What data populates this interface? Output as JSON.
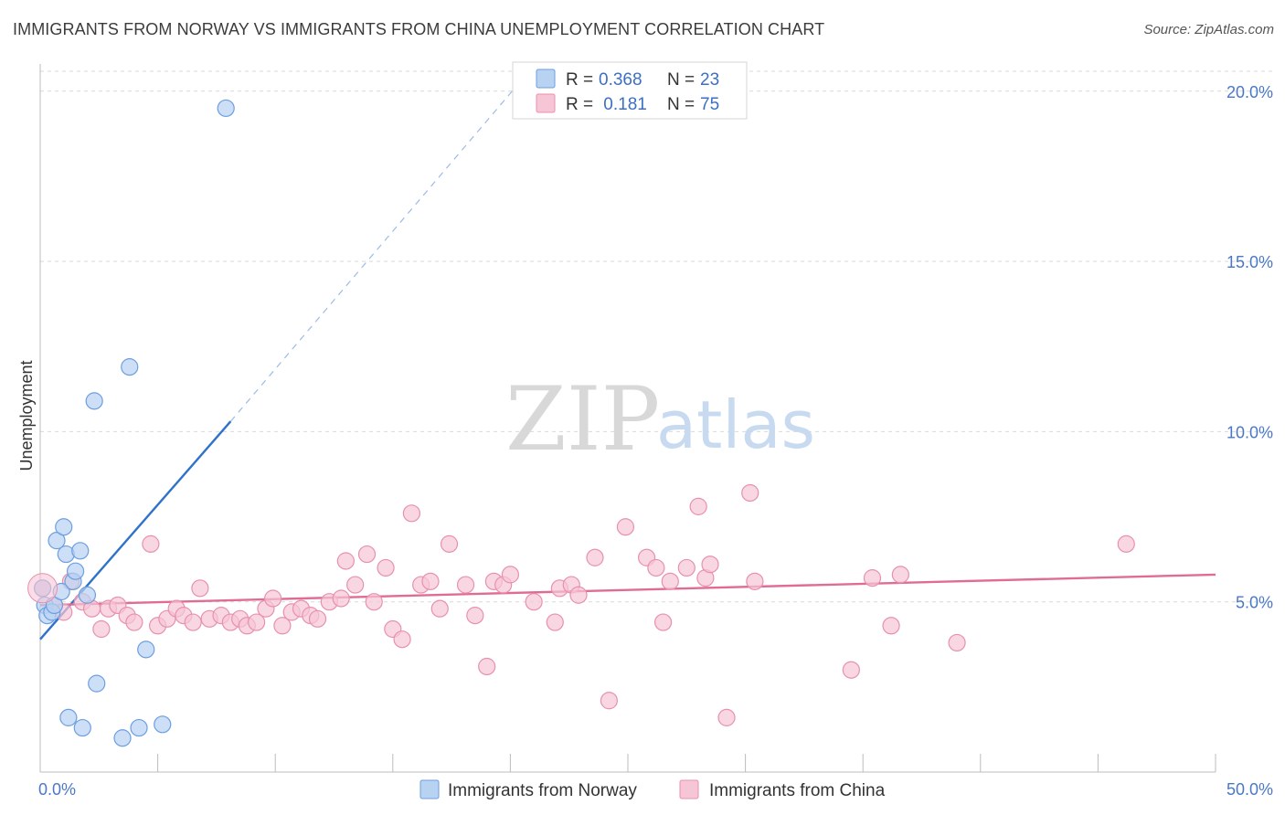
{
  "header": {
    "title": "IMMIGRANTS FROM NORWAY VS IMMIGRANTS FROM CHINA UNEMPLOYMENT CORRELATION CHART",
    "source": "Source: ZipAtlas.com"
  },
  "watermark": {
    "zip": "ZIP",
    "atlas": "atlas"
  },
  "colors": {
    "norway_fill": "#b8d2f2",
    "norway_stroke": "#6c9ee0",
    "norway_line": "#2e72cc",
    "china_fill": "#f7c6d6",
    "china_stroke": "#e890ae",
    "china_line": "#e06c96",
    "grid": "#d9d9d9",
    "tick": "#4a78c8"
  },
  "legend": {
    "norway": {
      "r_label": "R = ",
      "r_value": "0.368",
      "n_label": "N = ",
      "n_value": "23"
    },
    "china": {
      "r_label": "R = ",
      "r_value": " 0.181",
      "n_label": "N = ",
      "n_value": "75"
    }
  },
  "chart_data": {
    "type": "scatter",
    "title": "IMMIGRANTS FROM NORWAY VS IMMIGRANTS FROM CHINA UNEMPLOYMENT CORRELATION CHART",
    "xlabel": "",
    "ylabel": "Unemployment",
    "xlim": [
      0,
      50
    ],
    "ylim": [
      0,
      20.8
    ],
    "x_tick_labels": [
      "0.0%",
      "50.0%"
    ],
    "y_ticks": [
      5,
      10,
      15,
      20
    ],
    "y_tick_labels": [
      "5.0%",
      "10.0%",
      "15.0%",
      "20.0%"
    ],
    "grid": true,
    "legend_position": "top-center",
    "series": [
      {
        "name": "Immigrants from Norway",
        "r": 0.368,
        "n": 23,
        "trend": {
          "x0": 0,
          "y0": 3.9,
          "x1": 8.1,
          "y1": 10.3,
          "dashed_to_x": 20.2,
          "dashed_to_y": 20.1
        },
        "points": [
          [
            0.1,
            5.4
          ],
          [
            0.2,
            4.9
          ],
          [
            0.3,
            4.6
          ],
          [
            0.5,
            4.7
          ],
          [
            0.6,
            4.9
          ],
          [
            0.7,
            6.8
          ],
          [
            0.9,
            5.3
          ],
          [
            1.0,
            7.2
          ],
          [
            1.1,
            6.4
          ],
          [
            1.4,
            5.6
          ],
          [
            1.5,
            5.9
          ],
          [
            1.7,
            6.5
          ],
          [
            2.0,
            5.2
          ],
          [
            2.3,
            10.9
          ],
          [
            2.4,
            2.6
          ],
          [
            3.8,
            11.9
          ],
          [
            4.5,
            3.6
          ],
          [
            7.9,
            19.5
          ],
          [
            1.2,
            1.6
          ],
          [
            1.8,
            1.3
          ],
          [
            3.5,
            1.0
          ],
          [
            4.2,
            1.3
          ],
          [
            5.2,
            1.4
          ]
        ]
      },
      {
        "name": "Immigrants from China",
        "r": 0.181,
        "n": 75,
        "trend": {
          "x0": 0,
          "y0": 4.9,
          "x1": 50,
          "y1": 5.8
        },
        "points": [
          [
            0.1,
            5.4
          ],
          [
            0.6,
            4.9
          ],
          [
            1.0,
            4.7
          ],
          [
            1.3,
            5.6
          ],
          [
            1.8,
            5.0
          ],
          [
            2.2,
            4.8
          ],
          [
            2.6,
            4.2
          ],
          [
            2.9,
            4.8
          ],
          [
            3.3,
            4.9
          ],
          [
            3.7,
            4.6
          ],
          [
            4.0,
            4.4
          ],
          [
            4.7,
            6.7
          ],
          [
            5.0,
            4.3
          ],
          [
            5.4,
            4.5
          ],
          [
            5.8,
            4.8
          ],
          [
            6.1,
            4.6
          ],
          [
            6.5,
            4.4
          ],
          [
            6.8,
            5.4
          ],
          [
            7.2,
            4.5
          ],
          [
            7.7,
            4.6
          ],
          [
            8.1,
            4.4
          ],
          [
            8.5,
            4.5
          ],
          [
            8.8,
            4.3
          ],
          [
            9.2,
            4.4
          ],
          [
            9.6,
            4.8
          ],
          [
            9.9,
            5.1
          ],
          [
            10.3,
            4.3
          ],
          [
            10.7,
            4.7
          ],
          [
            11.1,
            4.8
          ],
          [
            11.5,
            4.6
          ],
          [
            11.8,
            4.5
          ],
          [
            12.3,
            5.0
          ],
          [
            12.8,
            5.1
          ],
          [
            13.0,
            6.2
          ],
          [
            13.4,
            5.5
          ],
          [
            13.9,
            6.4
          ],
          [
            14.2,
            5.0
          ],
          [
            14.7,
            6.0
          ],
          [
            15.0,
            4.2
          ],
          [
            15.4,
            3.9
          ],
          [
            15.8,
            7.6
          ],
          [
            16.2,
            5.5
          ],
          [
            16.6,
            5.6
          ],
          [
            17.0,
            4.8
          ],
          [
            17.4,
            6.7
          ],
          [
            18.1,
            5.5
          ],
          [
            18.5,
            4.6
          ],
          [
            19.0,
            3.1
          ],
          [
            19.3,
            5.6
          ],
          [
            19.7,
            5.5
          ],
          [
            20.0,
            5.8
          ],
          [
            21.0,
            5.0
          ],
          [
            21.9,
            4.4
          ],
          [
            22.1,
            5.4
          ],
          [
            22.6,
            5.5
          ],
          [
            22.9,
            5.2
          ],
          [
            23.6,
            6.3
          ],
          [
            24.2,
            2.1
          ],
          [
            24.9,
            7.2
          ],
          [
            25.8,
            6.3
          ],
          [
            26.2,
            6.0
          ],
          [
            26.5,
            4.4
          ],
          [
            26.8,
            5.6
          ],
          [
            27.5,
            6.0
          ],
          [
            28.0,
            7.8
          ],
          [
            28.3,
            5.7
          ],
          [
            28.5,
            6.1
          ],
          [
            29.2,
            1.6
          ],
          [
            30.2,
            8.2
          ],
          [
            30.4,
            5.6
          ],
          [
            34.5,
            3.0
          ],
          [
            35.4,
            5.7
          ],
          [
            36.2,
            4.3
          ],
          [
            36.6,
            5.8
          ],
          [
            39.0,
            3.8
          ],
          [
            46.2,
            6.7
          ]
        ]
      }
    ]
  }
}
